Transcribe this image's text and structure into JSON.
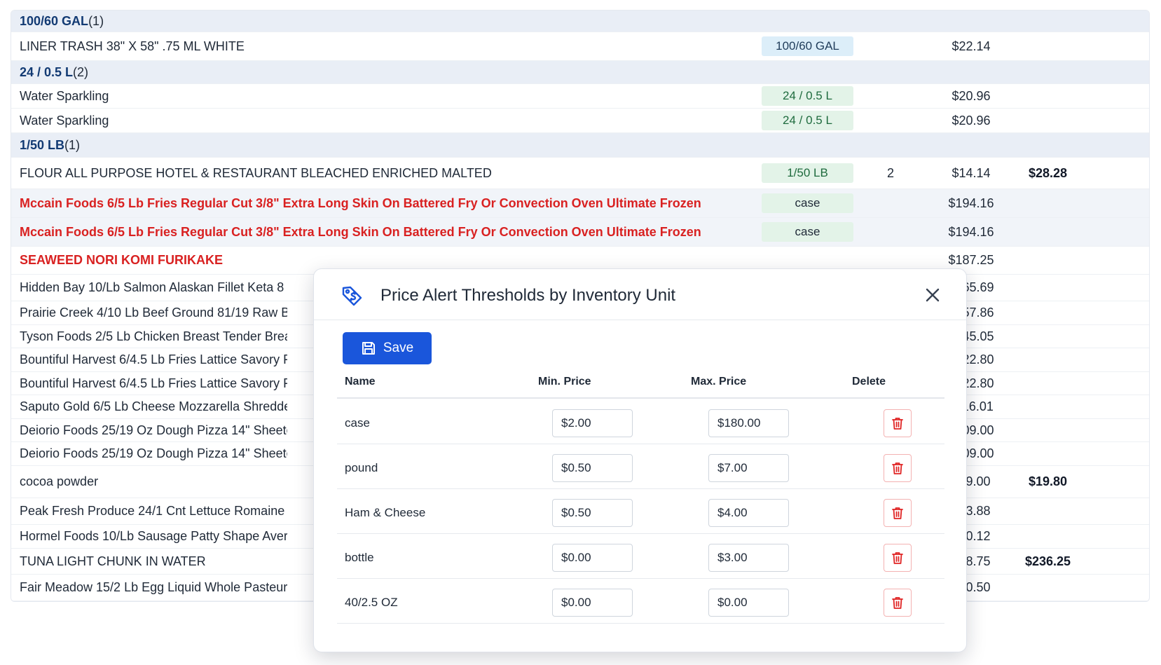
{
  "background_table": {
    "rows": [
      {
        "type": "group",
        "name": "100/60 GAL",
        "count": "(1)"
      },
      {
        "type": "item",
        "name": "LINER TRASH 38\" X 58\" .75 ML WHITE",
        "unit": "100/60 GAL",
        "unit_style": "blue",
        "qty": "",
        "price": "$22.14",
        "total": ""
      },
      {
        "type": "group",
        "name": "24 / 0.5 L",
        "count": "(2)"
      },
      {
        "type": "item",
        "name": "Water Sparkling",
        "unit": "24 / 0.5 L",
        "unit_style": "green",
        "qty": "",
        "price": "$20.96",
        "total": ""
      },
      {
        "type": "item",
        "name": "Water Sparkling",
        "unit": "24 / 0.5 L",
        "unit_style": "green",
        "qty": "",
        "price": "$20.96",
        "total": ""
      },
      {
        "type": "group",
        "name": "1/50 LB",
        "count": "(1)"
      },
      {
        "type": "item",
        "name": "FLOUR ALL PURPOSE HOTEL & RESTAURANT BLEACHED ENRICHED MALTED",
        "unit": "1/50 LB",
        "unit_style": "green",
        "qty": "2",
        "price": "$14.14",
        "total": "$28.28"
      },
      {
        "type": "red-tint",
        "name": "Mccain Foods 6/5 Lb Fries Regular Cut 3/8\" Extra Long Skin On Battered Fry Or Convection Oven Ultimate Frozen",
        "unit": "case",
        "unit_style": "greendk",
        "qty": "",
        "price": "$194.16",
        "total": ""
      },
      {
        "type": "red-tint",
        "name": "Mccain Foods 6/5 Lb Fries Regular Cut 3/8\" Extra Long Skin On Battered Fry Or Convection Oven Ultimate Frozen",
        "unit": "case",
        "unit_style": "greendk",
        "qty": "",
        "price": "$194.16",
        "total": ""
      },
      {
        "type": "red",
        "name": "SEAWEED NORI KOMI FURIKAKE",
        "unit": "",
        "qty": "",
        "price": "$187.25",
        "total": ""
      },
      {
        "type": "item",
        "name": "Hidden Bay 10/Lb Salmon Alaskan Fillet Keta 8 On",
        "unit": "",
        "qty": "",
        "price": "$165.69",
        "total": ""
      },
      {
        "type": "item",
        "name": "Prairie Creek 4/10 Lb Beef Ground 81/19 Raw Bulk",
        "unit": "",
        "qty": "",
        "price": "$157.86",
        "total": ""
      },
      {
        "type": "item",
        "name": "Tyson Foods 2/5 Lb Chicken Breast Tender Breade",
        "unit": "",
        "qty": "",
        "price": "$145.05",
        "total": ""
      },
      {
        "type": "item",
        "name": "Bountiful Harvest 6/4.5 Lb Fries Lattice Savory Frc",
        "unit": "",
        "qty": "",
        "price": "$122.80",
        "total": ""
      },
      {
        "type": "item",
        "name": "Bountiful Harvest 6/4.5 Lb Fries Lattice Savory Frc",
        "unit": "",
        "qty": "",
        "price": "$122.80",
        "total": ""
      },
      {
        "type": "item",
        "name": "Saputo Gold 6/5 Lb Cheese Mozzarella Shredded",
        "unit": "",
        "qty": "",
        "price": "$116.01",
        "total": ""
      },
      {
        "type": "item",
        "name": "Deiorio Foods 25/19 Oz Dough Pizza 14\" Sheeted (",
        "unit": "",
        "qty": "",
        "price": "$109.00",
        "total": ""
      },
      {
        "type": "item",
        "name": "Deiorio Foods 25/19 Oz Dough Pizza 14\" Sheeted (",
        "unit": "",
        "qty": "",
        "price": "$109.00",
        "total": ""
      },
      {
        "type": "item",
        "name": "cocoa powder",
        "unit": "",
        "qty": "",
        "price": "$99.00",
        "total": "$19.80"
      },
      {
        "type": "item",
        "name": "Peak Fresh Produce 24/1 Cnt Lettuce Romaine Lin",
        "unit": "",
        "qty": "",
        "price": "$93.88",
        "total": ""
      },
      {
        "type": "item",
        "name": "Hormel Foods 10/Lb Sausage Patty Shape Averag",
        "unit": "",
        "qty": "",
        "price": "$90.12",
        "total": ""
      },
      {
        "type": "item",
        "name": "TUNA LIGHT CHUNK IN WATER",
        "unit": "",
        "qty": "",
        "price": "$78.75",
        "total": "$236.25"
      },
      {
        "type": "item",
        "name": "Fair Meadow 15/2 Lb Egg Liquid Whole Pasteurize",
        "unit": "",
        "qty": "",
        "price": "$60.50",
        "total": ""
      }
    ]
  },
  "modal": {
    "title": "Price Alert Thresholds by Inventory Unit",
    "save_label": "Save",
    "columns": {
      "name": "Name",
      "min": "Min. Price",
      "max": "Max. Price",
      "delete": "Delete"
    },
    "rows": [
      {
        "name": "case",
        "min": "$2.00",
        "max": "$180.00"
      },
      {
        "name": "pound",
        "min": "$0.50",
        "max": "$7.00"
      },
      {
        "name": "Ham & Cheese",
        "min": "$0.50",
        "max": "$4.00"
      },
      {
        "name": "bottle",
        "min": "$0.00",
        "max": "$3.00"
      },
      {
        "name": "40/2.5 OZ",
        "min": "$0.00",
        "max": "$0.00"
      }
    ]
  },
  "colors": {
    "accent": "#1a56db",
    "danger": "#d92121",
    "group_bg": "#e9eef6"
  },
  "icons": {
    "modal": "price-tag-icon",
    "close": "close-icon",
    "save": "floppy-disk-icon",
    "delete": "trash-icon"
  }
}
